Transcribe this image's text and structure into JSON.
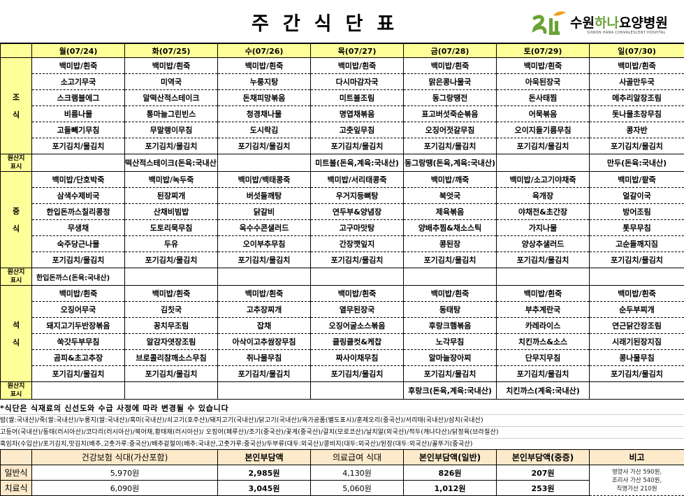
{
  "header": {
    "title": "주간식단표",
    "logo": {
      "name_part1": "수원",
      "name_part2": "하나",
      "name_part3": "요양병원",
      "subtitle": "SUWON HANA CONVALESCENT HOSPITAL",
      "brand_green": "#6aa335",
      "brand_orange": "#f0a020"
    }
  },
  "colors": {
    "label_bg": "#ffff99",
    "cost_header_bg": "#fdeacb"
  },
  "days": [
    "월(07/24)",
    "화(07/25)",
    "수(07/26)",
    "목(07/27)",
    "금(07/28)",
    "토(07/29)",
    "일(07/30)"
  ],
  "origin_label": "원산지 표시",
  "meals": [
    {
      "label": [
        "조",
        "식"
      ],
      "rows": [
        [
          "백미밥/흰죽",
          "백미밥/흰죽",
          "백미밥/흰죽",
          "백미밥/흰죽",
          "백미밥/흰죽",
          "백미밥/흰죽",
          "백미밥/흰죽"
        ],
        [
          "소고기무국",
          "미역국",
          "누룽지탕",
          "다시마감자국",
          "맑은콩나물국",
          "아욱된장국",
          "사골만두국"
        ],
        [
          "스크램블에그",
          "알떡산적스테이크",
          "돈채피망볶음",
          "미트볼조림",
          "동그랑땡전",
          "돈사태찜",
          "메추리알장조림"
        ],
        [
          "비름나물",
          "통마늘그린빈스",
          "청경채나물",
          "명엽채볶음",
          "표고버섯죽순볶음",
          "어묵볶음",
          "돗나물초장무침"
        ],
        [
          "고들빼기무침",
          "무말랭이무침",
          "도시락김",
          "고춧잎무침",
          "오징어젓갈무침",
          "오이지들기름무침",
          "콩자반"
        ],
        [
          "포기김치/물김치",
          "포기김치/물김치",
          "포기김치/물김치",
          "포기김치/물김치",
          "포기김치/물김치",
          "포기김치/물김치",
          "포기김치/물김치"
        ]
      ],
      "origin": [
        "",
        "떡산적스테이크(돈육:국내산)",
        "",
        "미트볼(돈육,계육:국내산)",
        "동그랑땡(돈육,계육:국내산)",
        "",
        "만두(돈육:국내산)"
      ]
    },
    {
      "label": [
        "중",
        "식"
      ],
      "rows": [
        [
          "백미밥/단호박죽",
          "백미밥/녹두죽",
          "백미밥/백태콩죽",
          "백미밥/서리태콩죽",
          "백미밥/깨죽",
          "백미밥/소고기야채죽",
          "백미밥/팥죽"
        ],
        [
          "삼색수제비국",
          "된장찌개",
          "버섯들깨탕",
          "우거지등뼈탕",
          "북엇국",
          "육개장",
          "얼갈이국"
        ],
        [
          "한입돈까스칠리콩정",
          "산채비빔밥",
          "닭갈비",
          "연두부&양념장",
          "제육볶음",
          "야채전&초간장",
          "방어조림"
        ],
        [
          "무생채",
          "도토리묵무침",
          "옥수수콘샐러드",
          "고구마맛탕",
          "양배추찜&채소스틱",
          "가지나물",
          "톳무무침"
        ],
        [
          "숙주당근나물",
          "두유",
          "오이부추무침",
          "간장깻잎지",
          "콩된장",
          "양상추샐러드",
          "고순들깨지짐"
        ],
        [
          "포기김치/물김치",
          "포기김치/물김치",
          "포기김치/물김치",
          "포기김치/물김치",
          "포기김치/물김치",
          "포기김치/물김치",
          "포기김치/물김치"
        ]
      ],
      "origin": [
        "한입돈까스(돈육:국내산)",
        "",
        "",
        "",
        "",
        "",
        ""
      ]
    },
    {
      "label": [
        "석",
        "식"
      ],
      "rows": [
        [
          "백미밥/흰죽",
          "백미밥/흰죽",
          "백미밥/흰죽",
          "백미밥/흰죽",
          "백미밥/흰죽",
          "백미밥/흰죽",
          "백미밥/흰죽"
        ],
        [
          "오징어무국",
          "김칫국",
          "고추장찌개",
          "열무된장국",
          "동태탕",
          "부추계란국",
          "순두부찌개"
        ],
        [
          "돼지고기두반장볶음",
          "꽁치무조림",
          "잡채",
          "오징어굴소스볶음",
          "후랑크햄볶음",
          "카레라이스",
          "연근닭간장조림"
        ],
        [
          "쑥갓두부무침",
          "알감자엿장조림",
          "아삭이고추쌈장무침",
          "클링클컷&케찹",
          "노각무침",
          "치킨까스&소스",
          "시래기된장지짐"
        ],
        [
          "곰피&초고추장",
          "브로콜리참깨소스무침",
          "취나물무침",
          "짜사이채무침",
          "알마늘장아찌",
          "단무지무침",
          "콩나물무침"
        ],
        [
          "포기김치/물김치",
          "포기김치/물김치",
          "포기김치/물김치",
          "포기김치/물김치",
          "포기김치/물김치",
          "포기김치/물김치",
          "포기김치/물김치"
        ]
      ],
      "origin": [
        "",
        "",
        "",
        "",
        "후랑크(돈육,계육:국내산)",
        "치킨까스(계육:국내산)",
        ""
      ]
    }
  ],
  "notes": [
    "*식단은 식재료의  신선도와 수급 사정에 따라 변경될 수 있습니다",
    "밥(쌀:국내산)/죽(쌀:국내산)/누룽지(쌀:국내산)/흑미(국내산)/쇠고기(호주산)/돼지고기(국내산)/닭고기(국내산)/육가공품(별도표시)/훈제오리(중국산)/서리태(국내산)/삼치(국내산)",
    "고등어(국내산)/동태(러시아산)/코다리(러시아산)/북어채,황태채(러시아산)/ 오징어(페루산)/조기(중국산)/꽃게(중국산)/갈치(모로코산)/날치알(외국산)/적두(캐나다산)/닭정육(브라질산)",
    "흑임자(수입산)/포기김치,맛김치(배추,고춧가루:중국산)/배추겉절이(배추:국내산,고춧가루:중국산)/두부류(대두:외국산)/콩비지(대두:외국산)/된장(대두:외국산)/꼴뚜기(중국산)"
  ],
  "cost": {
    "headers": [
      "",
      "건강보험 식대(가산포함)",
      "본인부담액",
      "의료급여 식대",
      "본인부담액(일반)",
      "본인부담액(중증)",
      "비고"
    ],
    "rows": [
      {
        "label": "일반식",
        "values": [
          "5,970원",
          "2,985원",
          "4,130원",
          "826원",
          "207원"
        ]
      },
      {
        "label": "치료식",
        "values": [
          "6,090원",
          "3,045원",
          "5,060원",
          "1,012원",
          "253원"
        ]
      }
    ],
    "remark": [
      "영양사 가산 590원,",
      "조리사 가산 540원,",
      "직영가산 210원"
    ]
  }
}
